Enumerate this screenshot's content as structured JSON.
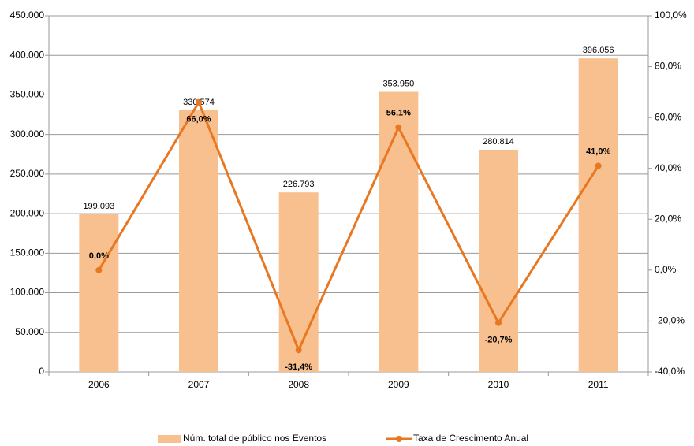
{
  "chart_data": {
    "type": "bar_line",
    "categories": [
      "2006",
      "2007",
      "2008",
      "2009",
      "2010",
      "2011"
    ],
    "series": [
      {
        "name": "Núm. total de público nos Eventos",
        "type": "bar",
        "color": "#f9c08f",
        "values": [
          199093,
          330574,
          226793,
          353950,
          280814,
          396056
        ],
        "value_labels": [
          "199.093",
          "330.574",
          "226.793",
          "353.950",
          "280.814",
          "396.056"
        ]
      },
      {
        "name": "Taxa de Crescimento Anual",
        "type": "line",
        "axis": "y2",
        "color": "#e87722",
        "values": [
          0.0,
          66.0,
          -31.4,
          56.1,
          -20.7,
          41.0
        ],
        "value_labels": [
          "0,0%",
          "66,0%",
          "-31,4%",
          "56,1%",
          "-20,7%",
          "41,0%"
        ]
      }
    ],
    "ylim": [
      0,
      450000
    ],
    "yticks": [
      0,
      {
        "value": 50000,
        "label": "50.000"
      },
      {
        "value": 100000,
        "label": "100.000"
      },
      {
        "value": 150000,
        "label": "150.000"
      },
      {
        "value": 200000,
        "label": "200.000"
      },
      {
        "value": 250000,
        "label": "250.000"
      },
      {
        "value": 300000,
        "label": "300.000"
      },
      {
        "value": 350000,
        "label": "350.000"
      },
      {
        "value": 400000,
        "label": "400.000"
      },
      {
        "value": 450000,
        "label": "450.000"
      }
    ],
    "y2lim": [
      -40,
      100
    ],
    "y2ticks": [
      {
        "value": -40,
        "label": "-40,0%"
      },
      {
        "value": -20,
        "label": "-20,0%"
      },
      {
        "value": 0,
        "label": "0,0%"
      },
      {
        "value": 20,
        "label": "20,0%"
      },
      {
        "value": 40,
        "label": "40,0%"
      },
      {
        "value": 60,
        "label": "60,0%"
      },
      {
        "value": 80,
        "label": "80,0%"
      },
      {
        "value": 100,
        "label": "100,0%"
      }
    ],
    "grid": true,
    "legend": "bottom"
  }
}
